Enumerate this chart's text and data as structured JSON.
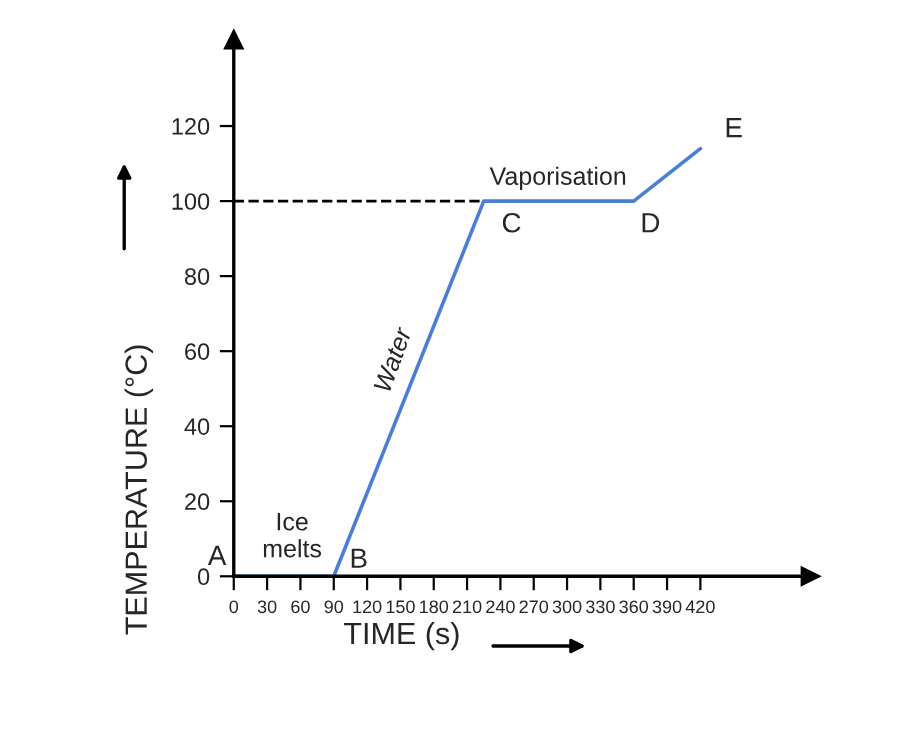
{
  "chart_data": {
    "type": "line",
    "xlabel": "TIME (s)",
    "ylabel": "TEMPERATURE (°C)",
    "x": [
      0,
      90,
      225,
      360,
      420
    ],
    "series": [
      {
        "color": "#4a7fd4",
        "values": [
          0,
          0,
          100,
          100,
          114
        ]
      },
      {
        "color": "#000000",
        "x": [
          0,
          225
        ],
        "values": [
          100,
          100
        ],
        "line_style": "dashed"
      }
    ],
    "xlim": [
      0,
      519
    ],
    "ylim": [
      0,
      143
    ],
    "xticks": [
      0,
      30,
      60,
      90,
      120,
      150,
      180,
      210,
      240,
      270,
      300,
      330,
      360,
      390,
      420
    ],
    "yticks": [
      0,
      20,
      40,
      60,
      80,
      100,
      120
    ],
    "grid": false,
    "legend": false,
    "marker": "none",
    "line_style": "solid",
    "annotations": [
      {
        "text": "A",
        "x": 0,
        "y": 0
      },
      {
        "text": "B",
        "x": 90,
        "y": 0
      },
      {
        "text": "C",
        "x": 225,
        "y": 100
      },
      {
        "text": "D",
        "x": 360,
        "y": 100
      },
      {
        "text": "E",
        "x": 420,
        "y": 114
      },
      {
        "text": "Ice\nmelts",
        "x": 45,
        "y": 0
      },
      {
        "text": "Water",
        "x": 157,
        "y": 50
      },
      {
        "text": "Vaporisation",
        "x": 292,
        "y": 100
      }
    ]
  }
}
